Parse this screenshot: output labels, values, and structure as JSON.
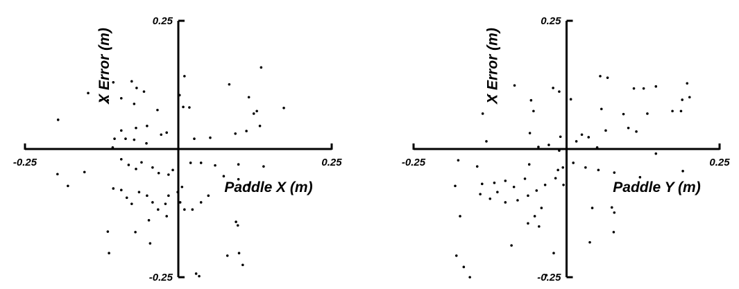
{
  "chart_data": [
    {
      "type": "scatter",
      "xlabel": "Paddle X (m)",
      "ylabel": "X Error (m)",
      "xlim": [
        -0.25,
        0.25
      ],
      "ylim": [
        -0.25,
        0.25
      ],
      "xticks": [
        -0.25,
        0.25
      ],
      "yticks": [
        -0.25,
        0.25
      ],
      "series": [
        {
          "color": "#000000",
          "x": [
            0.01,
            0.135,
            0.083,
            0.115,
            0.128,
            0.123,
            0.172,
            0.133,
            0.111,
            0.093,
            -0.196,
            -0.147,
            -0.127,
            -0.115,
            -0.106,
            -0.076,
            -0.068,
            -0.056,
            -0.093,
            -0.072,
            -0.034,
            0.018,
            0.008,
            0.002,
            -0.019,
            -0.028,
            -0.051,
            -0.069,
            -0.093,
            -0.104,
            -0.086,
            -0.072,
            -0.052,
            0.026,
            0.052,
            -0.107,
            -0.197,
            -0.18,
            -0.153,
            -0.093,
            -0.081,
            -0.069,
            -0.06,
            -0.042,
            -0.032,
            -0.016,
            -0.009,
            -0.106,
            -0.093,
            -0.084,
            -0.076,
            -0.064,
            -0.051,
            -0.042,
            -0.033,
            -0.021,
            -0.016,
            -0.001,
            0.006,
            0.003,
            0.01,
            0.023,
            0.037,
            0.049,
            0.037,
            0.02,
            0.06,
            0.074,
            0.098,
            0.114,
            0.139,
            0.098,
            -0.048,
            -0.019,
            -0.07,
            -0.046,
            -0.115,
            -0.113,
            0.094,
            0.097,
            0.08,
            0.099,
            0.105,
            0.029,
            0.034
          ],
          "values": [
            0.142,
            0.159,
            0.126,
            0.101,
            0.074,
            0.069,
            0.08,
            0.045,
            0.035,
            0.03,
            0.057,
            0.109,
            0.095,
            0.095,
            0.13,
            0.132,
            0.119,
            0.112,
            0.099,
            0.088,
            0.076,
            0.081,
            0.082,
            0.105,
            0.032,
            0.028,
            0.045,
            0.041,
            0.036,
            0.02,
            0.02,
            0.018,
            0.011,
            0.02,
            0.022,
            0.003,
            -0.049,
            -0.072,
            -0.045,
            -0.02,
            -0.031,
            -0.039,
            -0.026,
            -0.036,
            -0.047,
            -0.05,
            -0.041,
            -0.077,
            -0.08,
            -0.095,
            -0.107,
            -0.084,
            -0.091,
            -0.104,
            -0.118,
            -0.107,
            -0.091,
            -0.084,
            -0.074,
            -0.104,
            -0.118,
            -0.118,
            -0.104,
            -0.091,
            -0.027,
            -0.027,
            -0.032,
            -0.053,
            -0.059,
            -0.07,
            -0.034,
            -0.03,
            -0.139,
            -0.131,
            -0.162,
            -0.184,
            -0.161,
            -0.203,
            -0.142,
            -0.149,
            -0.208,
            -0.203,
            -0.226,
            -0.243,
            -0.248
          ]
        }
      ]
    },
    {
      "type": "scatter",
      "xlabel": "Paddle Y (m)",
      "ylabel": "X Error (m)",
      "xlim": [
        -0.25,
        0.25
      ],
      "ylim": [
        -0.25,
        0.25
      ],
      "xticks": [
        -0.25,
        0.25
      ],
      "yticks": [
        -0.25,
        0.25
      ],
      "series": [
        {
          "color": "#000000",
          "x": [
            -0.085,
            -0.126,
            -0.137,
            -0.058,
            -0.054,
            -0.022,
            -0.012,
            0.007,
            0.057,
            0.055,
            0.067,
            0.11,
            0.126,
            0.146,
            0.197,
            0.201,
            0.189,
            0.173,
            0.187,
            0.093,
            0.132,
            0.101,
            0.114,
            0.064,
            0.036,
            0.025,
            0.016,
            0.05,
            -0.131,
            -0.06,
            -0.046,
            -0.029,
            -0.01,
            -0.012,
            -0.177,
            -0.146,
            -0.182,
            -0.138,
            -0.118,
            -0.1,
            -0.086,
            -0.141,
            -0.125,
            -0.113,
            -0.1,
            -0.08,
            -0.063,
            -0.049,
            -0.035,
            -0.018,
            -0.014,
            -0.006,
            -0.061,
            -0.068,
            -0.005,
            0.011,
            0.031,
            0.052,
            0.078,
            0.12,
            0.19,
            0.146,
            0.074,
            0.078,
            0.042,
            -0.041,
            -0.052,
            -0.063,
            -0.045,
            -0.174,
            -0.09,
            -0.021,
            0.038,
            0.077,
            -0.18,
            -0.168,
            -0.158,
            -0.033
          ],
          "values": [
            0.124,
            0.103,
            0.069,
            0.095,
            0.074,
            0.119,
            0.112,
            0.097,
            0.078,
            0.142,
            0.139,
            0.118,
            0.118,
            0.122,
            0.128,
            0.101,
            0.096,
            0.074,
            0.074,
            0.068,
            0.069,
            0.041,
            0.034,
            0.036,
            0.023,
            0.028,
            0.015,
            0.003,
            0.015,
            0.031,
            0.004,
            0.008,
            0.024,
            -0.003,
            -0.022,
            -0.034,
            -0.072,
            -0.068,
            -0.066,
            -0.062,
            -0.074,
            -0.088,
            -0.097,
            -0.084,
            -0.104,
            -0.1,
            -0.091,
            -0.081,
            -0.07,
            -0.057,
            -0.041,
            -0.036,
            -0.03,
            -0.058,
            -0.07,
            -0.027,
            -0.036,
            -0.041,
            -0.046,
            -0.055,
            -0.043,
            -0.009,
            -0.114,
            -0.124,
            -0.115,
            -0.115,
            -0.131,
            -0.145,
            -0.151,
            -0.131,
            -0.188,
            -0.203,
            -0.182,
            -0.162,
            -0.208,
            -0.23,
            -0.25,
            -0.246
          ]
        }
      ]
    }
  ]
}
